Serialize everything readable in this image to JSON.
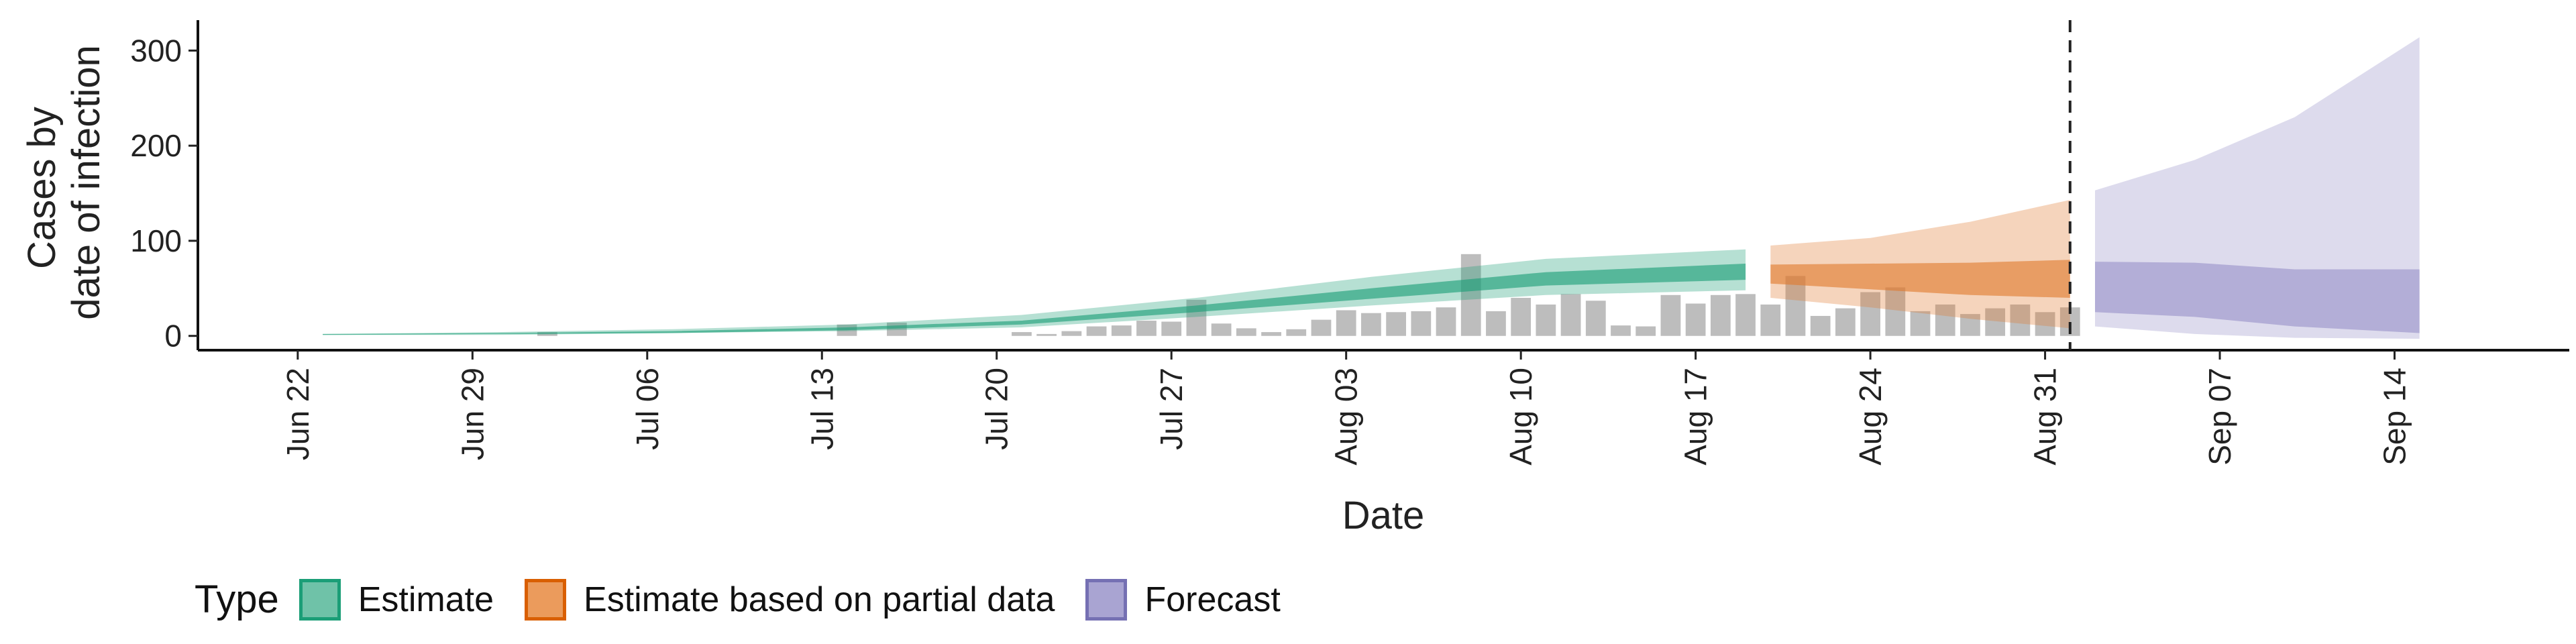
{
  "chart_data": {
    "type": "area",
    "title": "",
    "xlabel": "Date",
    "ylabel": [
      "Cases by",
      "date of infection"
    ],
    "ylim": [
      -15,
      332
    ],
    "yticks": [
      0,
      100,
      200,
      300
    ],
    "x_tick_labels": [
      "Jun 22",
      "Jun 29",
      "Jul 06",
      "Jul 13",
      "Jul 20",
      "Jul 27",
      "Aug 03",
      "Aug 10",
      "Aug 17",
      "Aug 24",
      "Aug 31",
      "Sep 07",
      "Sep 14"
    ],
    "x_tick_dates": [
      "2020-06-22",
      "2020-06-29",
      "2020-07-06",
      "2020-07-13",
      "2020-07-20",
      "2020-07-27",
      "2020-08-03",
      "2020-08-10",
      "2020-08-17",
      "2020-08-24",
      "2020-08-31",
      "2020-09-07",
      "2020-09-14"
    ],
    "xlim": [
      "2020-06-18",
      "2020-09-21"
    ],
    "forecast_date": "2020-09-01",
    "legend": {
      "title": "Type",
      "position": "bottom",
      "entries": [
        "Estimate",
        "Estimate based on partial data",
        "Forecast"
      ]
    },
    "colors": {
      "estimate": "#1b9e77",
      "partial": "#e07a2f",
      "forecast": "#8f88c4",
      "bars": "#bdbdbd",
      "vline": "#222222"
    },
    "observed_cases": {
      "dates": [
        "2020-07-02",
        "2020-07-14",
        "2020-07-16",
        "2020-07-21",
        "2020-07-22",
        "2020-07-23",
        "2020-07-24",
        "2020-07-25",
        "2020-07-26",
        "2020-07-27",
        "2020-07-28",
        "2020-07-29",
        "2020-07-30",
        "2020-07-31",
        "2020-08-01",
        "2020-08-02",
        "2020-08-03",
        "2020-08-04",
        "2020-08-05",
        "2020-08-06",
        "2020-08-07",
        "2020-08-08",
        "2020-08-09",
        "2020-08-10",
        "2020-08-11",
        "2020-08-12",
        "2020-08-13",
        "2020-08-14",
        "2020-08-15",
        "2020-08-16",
        "2020-08-17",
        "2020-08-18",
        "2020-08-19",
        "2020-08-20",
        "2020-08-21",
        "2020-08-22",
        "2020-08-23",
        "2020-08-24",
        "2020-08-25",
        "2020-08-26",
        "2020-08-27",
        "2020-08-28",
        "2020-08-29",
        "2020-08-30",
        "2020-08-31",
        "2020-09-01"
      ],
      "values": [
        4,
        12,
        14,
        4,
        2,
        5,
        10,
        11,
        16,
        15,
        38,
        13,
        8,
        4,
        7,
        17,
        27,
        24,
        25,
        26,
        30,
        86,
        26,
        40,
        33,
        44,
        37,
        11,
        10,
        43,
        34,
        43,
        44,
        33,
        63,
        21,
        29,
        46,
        51,
        26,
        33,
        23,
        29,
        33,
        25,
        30
      ]
    },
    "series": [
      {
        "name": "Estimate",
        "dates": [
          "2020-06-23",
          "2020-06-30",
          "2020-07-07",
          "2020-07-14",
          "2020-07-21",
          "2020-07-28",
          "2020-08-04",
          "2020-08-11",
          "2020-08-19"
        ],
        "median": [
          1,
          2,
          4,
          7,
          14,
          28,
          44,
          60,
          68
        ],
        "lower_50": [
          1,
          2,
          3,
          6,
          12,
          25,
          39,
          53,
          59
        ],
        "upper_50": [
          2,
          3,
          5,
          9,
          16,
          32,
          50,
          67,
          76
        ],
        "lower_90": [
          1,
          1,
          3,
          5,
          9,
          20,
          32,
          43,
          48
        ],
        "upper_90": [
          2,
          4,
          7,
          12,
          22,
          40,
          62,
          81,
          91
        ]
      },
      {
        "name": "Estimate based on partial data",
        "dates": [
          "2020-08-20",
          "2020-08-24",
          "2020-08-28",
          "2020-09-01"
        ],
        "median": [
          66,
          62,
          59,
          60
        ],
        "lower_50": [
          55,
          49,
          43,
          40
        ],
        "upper_50": [
          75,
          76,
          77,
          80
        ],
        "lower_90": [
          40,
          30,
          18,
          8
        ],
        "upper_90": [
          95,
          103,
          120,
          143
        ]
      },
      {
        "name": "Forecast",
        "dates": [
          "2020-09-02",
          "2020-09-06",
          "2020-09-10",
          "2020-09-15"
        ],
        "median": [
          55,
          50,
          48,
          47
        ],
        "lower_50": [
          25,
          20,
          10,
          3
        ],
        "upper_50": [
          78,
          77,
          70,
          70
        ],
        "lower_90": [
          10,
          2,
          -2,
          -3
        ],
        "upper_90": [
          153,
          185,
          230,
          314
        ]
      }
    ]
  }
}
